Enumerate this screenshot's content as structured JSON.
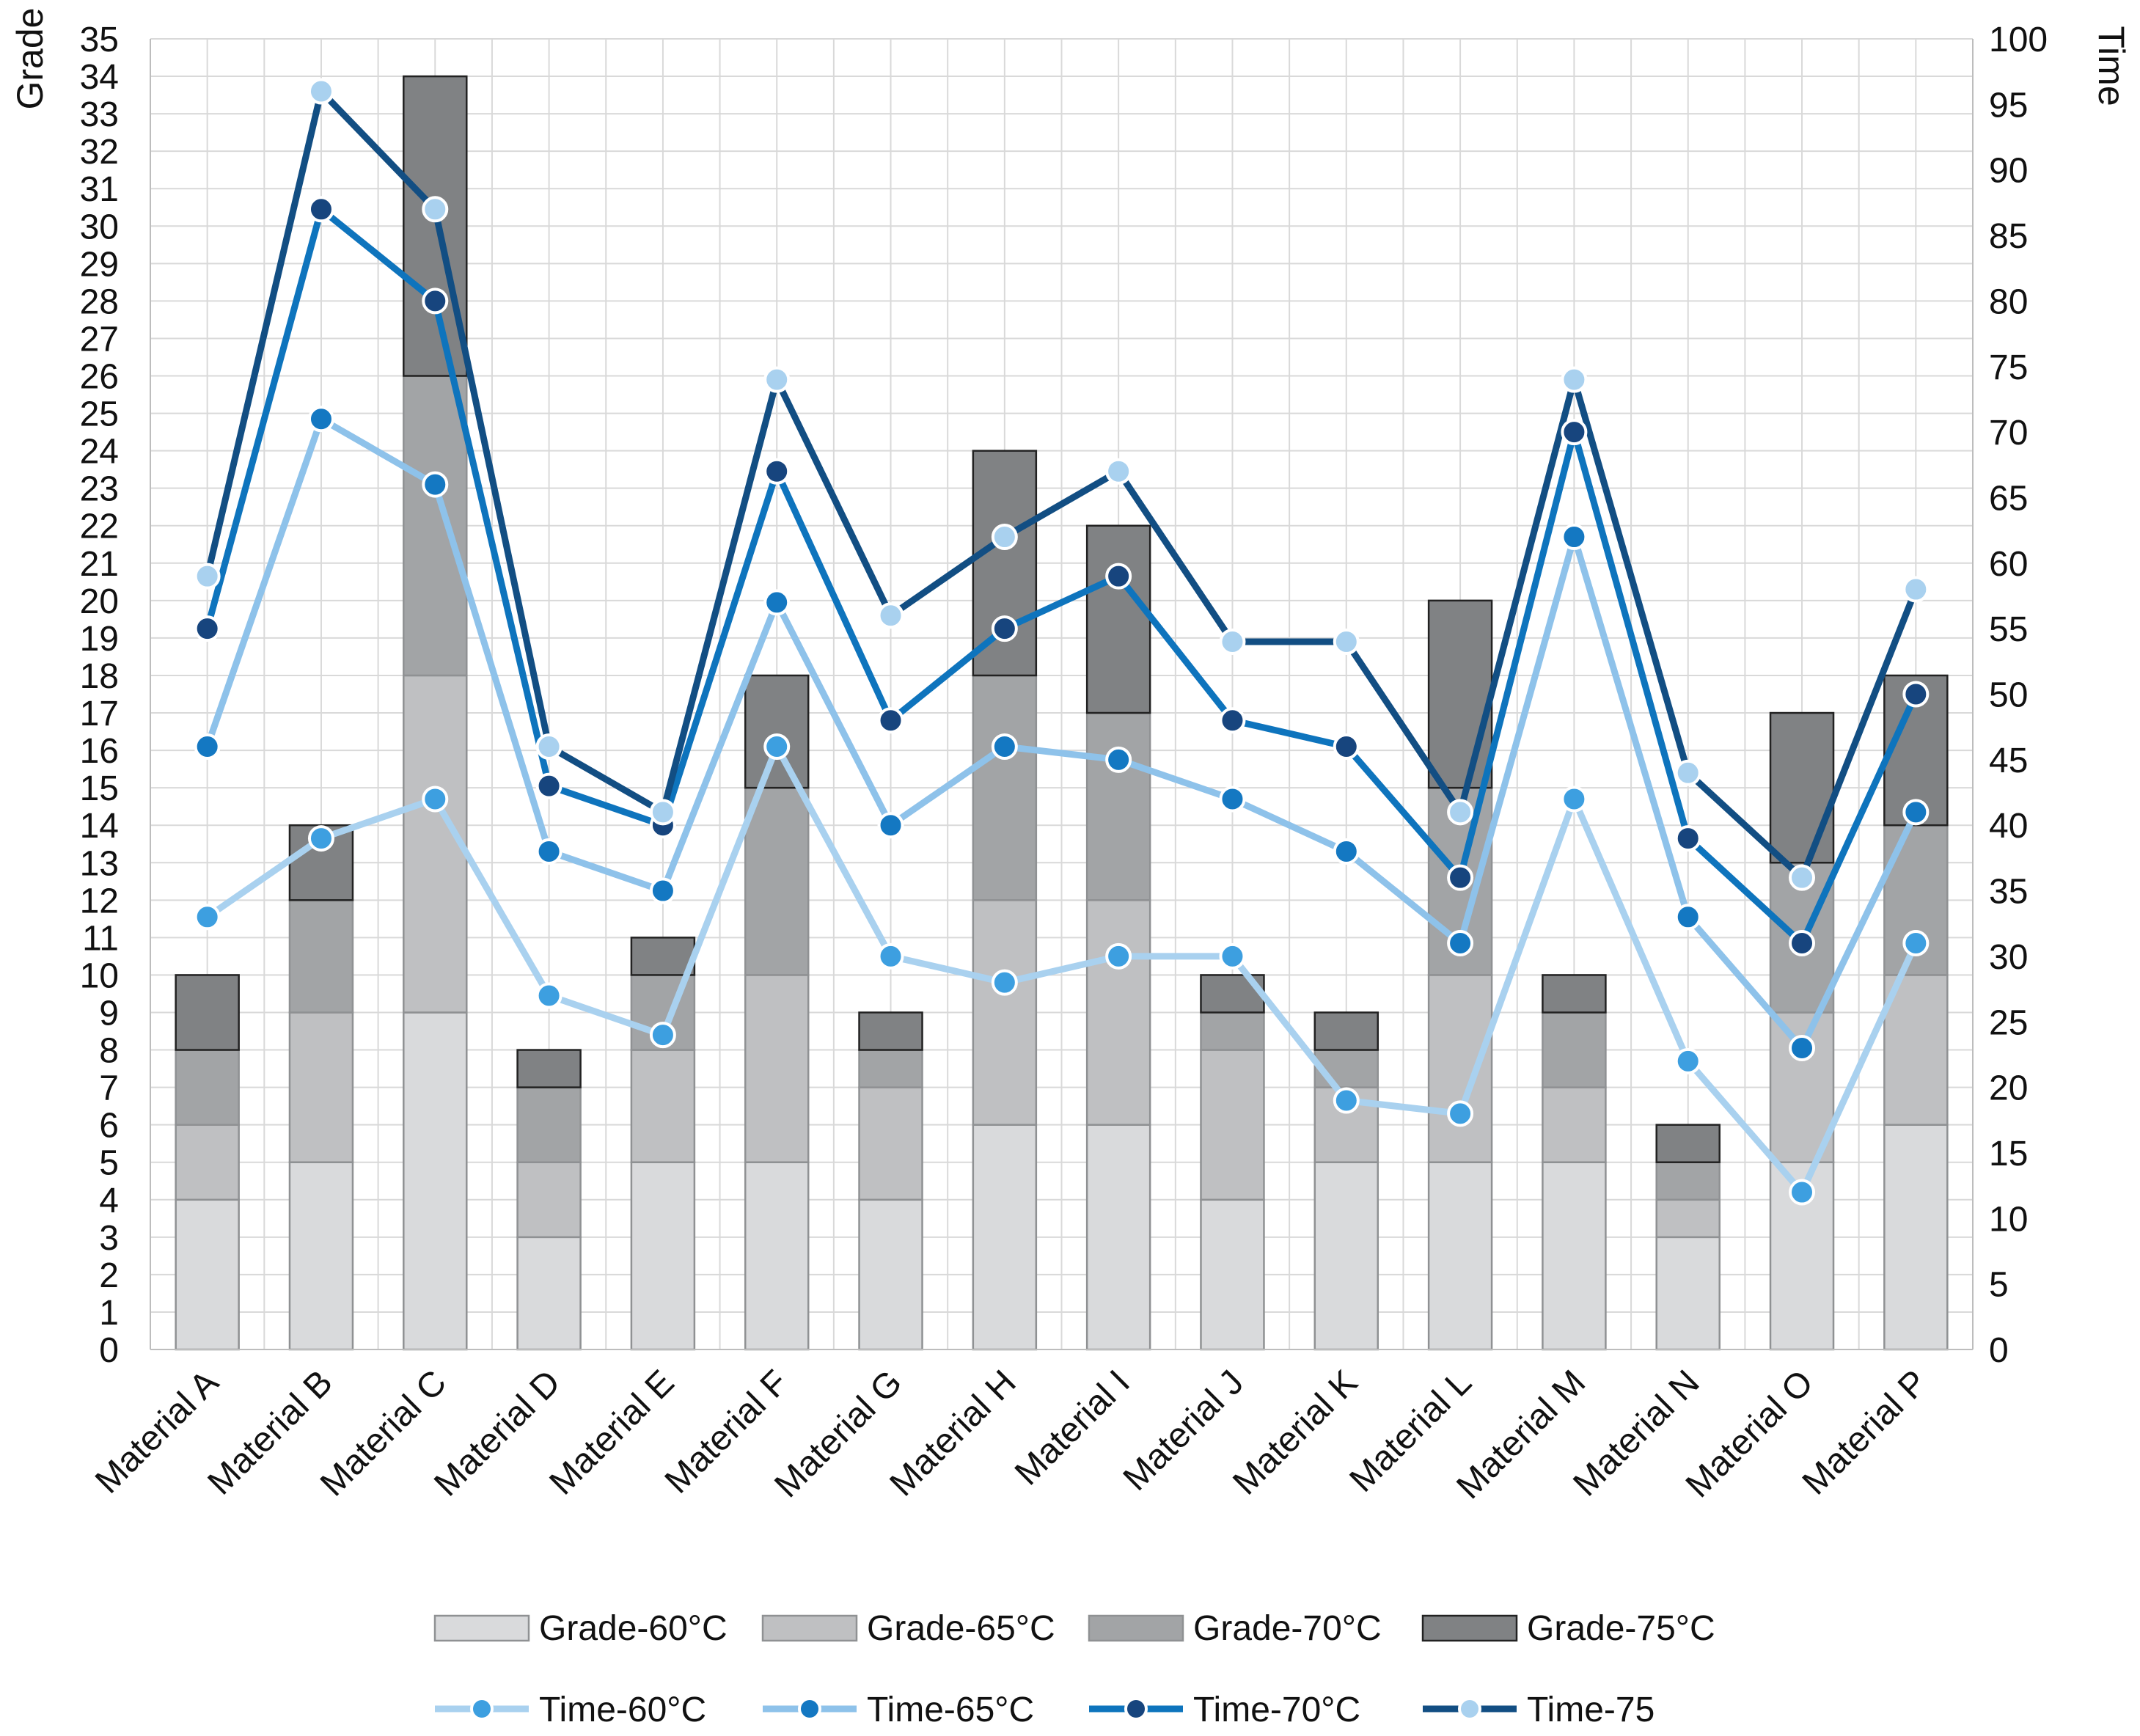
{
  "chart_data": {
    "type": "bar",
    "stacked": true,
    "categories": [
      "Material A",
      "Material B",
      "Material C",
      "Material D",
      "Material E",
      "Material F",
      "Material G",
      "Material H",
      "Material I",
      "Material J",
      "Material K",
      "Material L",
      "Material M",
      "Material N",
      "Material O",
      "Material P"
    ],
    "ylabel": "Grade",
    "y2label": "Time",
    "ylim": [
      0,
      35
    ],
    "y2lim": [
      0,
      100
    ],
    "y_ticks": [
      "0",
      "1",
      "2",
      "3",
      "4",
      "5",
      "6",
      "7",
      "8",
      "9",
      "10",
      "11",
      "12",
      "13",
      "14",
      "15",
      "16",
      "17",
      "18",
      "19",
      "20",
      "21",
      "22",
      "23",
      "24",
      "25",
      "26",
      "27",
      "28",
      "29",
      "30",
      "31",
      "32",
      "33",
      "34",
      "35"
    ],
    "y2_ticks": [
      "0",
      "5",
      "10",
      "15",
      "20",
      "25",
      "30",
      "35",
      "40",
      "45",
      "50",
      "55",
      "60",
      "65",
      "70",
      "75",
      "80",
      "85",
      "90",
      "95",
      "100"
    ],
    "grid": true,
    "bar_series": [
      {
        "name": "Grade-60°C",
        "cumulative": [
          4,
          5,
          9,
          3,
          5,
          5,
          4,
          6,
          6,
          4,
          5,
          5,
          5,
          3,
          5,
          6
        ],
        "color": "#d9dadc"
      },
      {
        "name": "Grade-65°C",
        "cumulative": [
          6,
          9,
          18,
          5,
          8,
          10,
          7,
          12,
          12,
          8,
          7,
          10,
          7,
          4,
          9,
          10
        ],
        "color": "#bfc0c2"
      },
      {
        "name": "Grade-70°C",
        "cumulative": [
          8,
          12,
          26,
          7,
          10,
          15,
          8,
          18,
          17,
          9,
          8,
          15,
          9,
          5,
          13,
          14
        ],
        "color": "#a2a4a6"
      },
      {
        "name": "Grade-75°C",
        "cumulative": [
          10,
          14,
          34,
          8,
          11,
          18,
          9,
          24,
          22,
          10,
          9,
          20,
          10,
          6,
          17,
          18
        ],
        "color": "#808284"
      }
    ],
    "line_series": [
      {
        "name": "Time-60°C",
        "values": [
          33,
          39,
          42,
          27,
          24,
          46,
          30,
          28,
          30,
          30,
          19,
          18,
          42,
          22,
          12,
          31
        ],
        "color": "#a9d1ef",
        "marker": "#3d9fe0"
      },
      {
        "name": "Time-65°C",
        "values": [
          46,
          71,
          66,
          38,
          35,
          57,
          40,
          46,
          45,
          42,
          38,
          31,
          62,
          33,
          23,
          41
        ],
        "color": "#8ec2ea",
        "marker": "#1478c2"
      },
      {
        "name": "Time-70°C",
        "values": [
          55,
          87,
          80,
          43,
          40,
          67,
          48,
          55,
          59,
          48,
          46,
          36,
          70,
          39,
          31,
          50
        ],
        "color": "#0e74bd",
        "marker": "#17457e"
      },
      {
        "name": "Time-75",
        "values": [
          59,
          96,
          87,
          46,
          41,
          74,
          56,
          62,
          67,
          54,
          54,
          41,
          74,
          44,
          36,
          58
        ],
        "color": "#124e83",
        "marker": "#a9d1ef"
      }
    ],
    "legend_position": "bottom"
  }
}
